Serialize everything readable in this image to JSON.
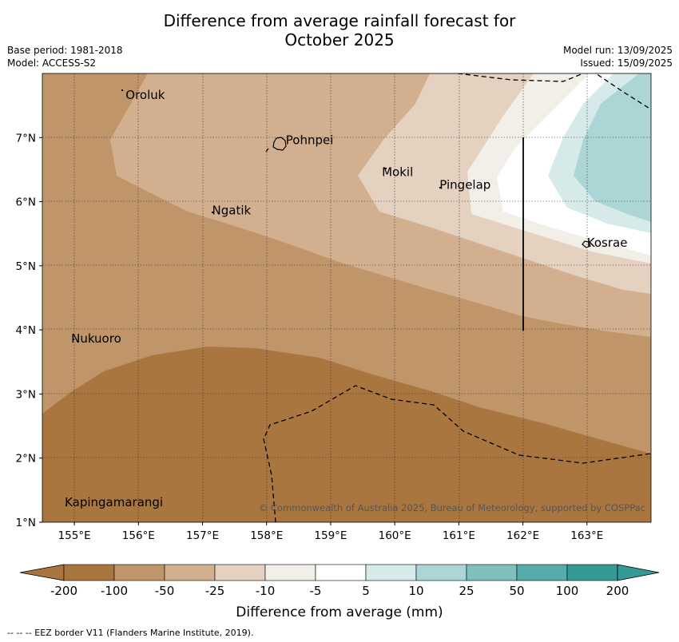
{
  "title_line1": "Difference from average rainfall forecast for",
  "title_line2": "October 2025",
  "base_period": "Base period: 1981-2018",
  "model": "Model: ACCESS-S2",
  "model_run": "Model run: 13/09/2025",
  "issued": "Issued: 15/09/2025",
  "map": {
    "lon_labels": [
      "155°E",
      "156°E",
      "157°E",
      "158°E",
      "159°E",
      "160°E",
      "161°E",
      "162°E",
      "163°E"
    ],
    "lat_labels": [
      "7°N",
      "6°N",
      "5°N",
      "4°N",
      "3°N",
      "2°N",
      "1°N"
    ],
    "places": [
      {
        "name": "Oroluk",
        "lon": 155.8,
        "lat": 7.6
      },
      {
        "name": "Pohnpei",
        "lon": 158.3,
        "lat": 6.9
      },
      {
        "name": "Mokil",
        "lon": 159.8,
        "lat": 6.4
      },
      {
        "name": "Pingelap",
        "lon": 160.7,
        "lat": 6.2
      },
      {
        "name": "Ngatik",
        "lon": 157.15,
        "lat": 5.8
      },
      {
        "name": "Kosrae",
        "lon": 163.0,
        "lat": 5.3
      },
      {
        "name": "Nukuoro",
        "lon": 154.95,
        "lat": 3.8
      },
      {
        "name": "Kapingamarangi",
        "lon": 154.85,
        "lat": 1.25
      }
    ],
    "copyright": "© Commonwealth of Australia 2025, Bureau of Meteorology, supported by COSPPac"
  },
  "legend": {
    "title": "Difference from average (mm)",
    "tick_labels": [
      "-200",
      "-100",
      "-50",
      "-25",
      "-10",
      "-5",
      "5",
      "10",
      "25",
      "50",
      "100",
      "200"
    ],
    "colors": [
      "#aa7640",
      "#c0956a",
      "#d2b08f",
      "#e4d1c0",
      "#f2eee8",
      "#ffffff",
      "#d5eae9",
      "#acd6d5",
      "#7fc0bd",
      "#56aca8",
      "#349a96"
    ]
  },
  "footer": "--  --  -- EEZ border V11 (Flanders Marine Institute, 2019)."
}
